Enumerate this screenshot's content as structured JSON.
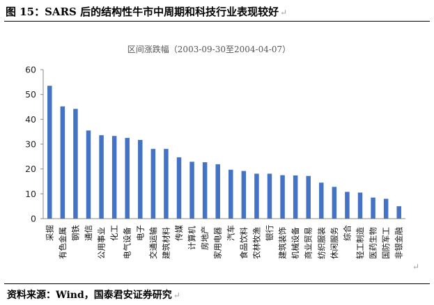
{
  "figure": {
    "title": "图 15：SARS 后的结构性牛市中周期和科技行业表现较好",
    "source": "资料来源：Wind，国泰君安证券研究",
    "pilcrow": "↵"
  },
  "chart_data": {
    "type": "bar",
    "title": "区间涨跌幅（2003-09-30至2004-04-07）",
    "xlabel": "",
    "ylabel": "",
    "ylim": [
      0,
      60
    ],
    "yticks": [
      0,
      10,
      20,
      30,
      40,
      50,
      60
    ],
    "grid": false,
    "legend": "none",
    "bar_color": "#4472c4",
    "categories": [
      "采掘",
      "有色金属",
      "钢铁",
      "通信",
      "公用事业",
      "化工",
      "电气设备",
      "电子",
      "交通运输",
      "建筑材料",
      "传媒",
      "计算机",
      "房地产",
      "家用电器",
      "汽车",
      "食品饮料",
      "农林牧渔",
      "银行",
      "建筑装饰",
      "机械设备",
      "商业贸易",
      "纺织服装",
      "休闲服务",
      "综合",
      "轻工制造",
      "医药生物",
      "国防军工",
      "非银金融"
    ],
    "values": [
      53.5,
      45.2,
      44.2,
      35.5,
      33.6,
      33.3,
      32.5,
      31.7,
      28.1,
      28.1,
      24.7,
      22.9,
      22.7,
      21.9,
      19.7,
      19.2,
      18.1,
      18.1,
      17.5,
      17.4,
      17.2,
      14.5,
      12.8,
      10.8,
      10.5,
      8.5,
      8.0,
      5.0
    ]
  }
}
